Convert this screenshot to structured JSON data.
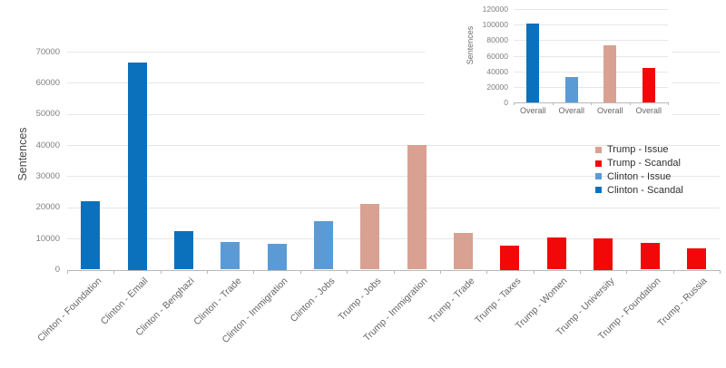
{
  "colors": {
    "gridline": "#e7e7e7",
    "axis_line": "#b9b9b9",
    "tick_label": "#7f7f7f",
    "category_label": "#666666",
    "legend_text": "#2f2f2f"
  },
  "series_colors": {
    "Trump - Issue": "#d8a192",
    "Trump - Scandal": "#f20808",
    "Clinton - Issue": "#5b9bd5",
    "Clinton - Scandal": "#0b71bd"
  },
  "legend": {
    "items": [
      {
        "label": "Trump - Issue"
      },
      {
        "label": "Trump - Scandal"
      },
      {
        "label": "Clinton - Issue"
      },
      {
        "label": "Clinton - Scandal"
      }
    ]
  },
  "chart_data": [
    {
      "type": "bar",
      "name": "sentences-by-topic",
      "title": "",
      "xlabel": "",
      "ylabel": "Sentences",
      "ylim": [
        0,
        70000
      ],
      "yticks": [
        0,
        10000,
        20000,
        30000,
        40000,
        50000,
        60000,
        70000
      ],
      "grid": true,
      "legend_position": "right-middle",
      "bars": [
        {
          "category": "Clinton - Foundation",
          "value": 22000,
          "series": "Clinton - Scandal"
        },
        {
          "category": "Clinton - Email",
          "value": 66500,
          "series": "Clinton - Scandal"
        },
        {
          "category": "Clinton - Benghazi",
          "value": 12300,
          "series": "Clinton - Scandal"
        },
        {
          "category": "Clinton - Trade",
          "value": 8800,
          "series": "Clinton - Issue"
        },
        {
          "category": "Clinton - Immigration",
          "value": 8300,
          "series": "Clinton - Issue"
        },
        {
          "category": "Clinton - Jobs",
          "value": 15700,
          "series": "Clinton - Issue"
        },
        {
          "category": "Trump - Jobs",
          "value": 21000,
          "series": "Trump - Issue"
        },
        {
          "category": "Trump - Immigration",
          "value": 40000,
          "series": "Trump - Issue"
        },
        {
          "category": "Trump - Trade",
          "value": 11900,
          "series": "Trump - Issue"
        },
        {
          "category": "Trump - Taxes",
          "value": 7700,
          "series": "Trump - Scandal"
        },
        {
          "category": "Trump - Women",
          "value": 10400,
          "series": "Trump - Scandal"
        },
        {
          "category": "Trump - University",
          "value": 10200,
          "series": "Trump - Scandal"
        },
        {
          "category": "Trump - Foundation",
          "value": 8500,
          "series": "Trump - Scandal"
        },
        {
          "category": "Trump - Russia",
          "value": 6900,
          "series": "Trump - Scandal"
        }
      ]
    },
    {
      "type": "bar",
      "name": "sentences-overall-inset",
      "title": "",
      "xlabel": "",
      "ylabel": "Sentences",
      "ylim": [
        0,
        120000
      ],
      "yticks": [
        0,
        20000,
        40000,
        60000,
        80000,
        100000,
        120000
      ],
      "grid": true,
      "bars": [
        {
          "category": "Overall",
          "value": 101000,
          "series": "Clinton - Scandal"
        },
        {
          "category": "Overall",
          "value": 33000,
          "series": "Clinton - Issue"
        },
        {
          "category": "Overall",
          "value": 73000,
          "series": "Trump - Issue"
        },
        {
          "category": "Overall",
          "value": 44000,
          "series": "Trump - Scandal"
        }
      ]
    }
  ]
}
